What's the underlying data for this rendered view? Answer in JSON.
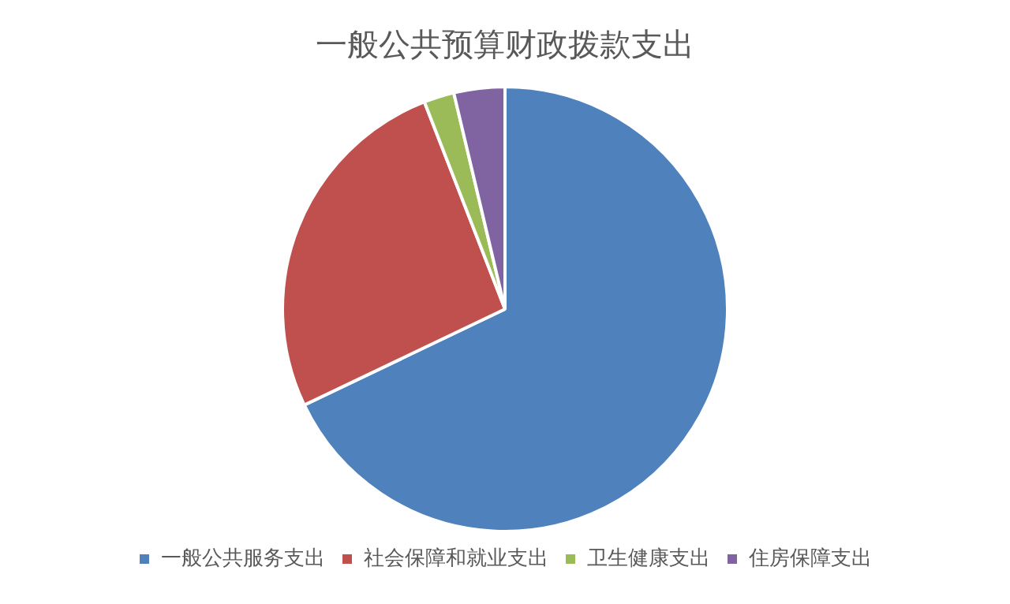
{
  "chart_data": {
    "type": "pie",
    "title": "一般公共预算财政拨款支出",
    "categories": [
      "一般公共服务支出",
      "社会保障和就业支出",
      "卫生健康支出",
      "住房保障支出"
    ],
    "values": [
      67.9,
      26.2,
      2.2,
      3.7
    ],
    "colors": [
      "#4f81bd",
      "#c0504d",
      "#9bbb59",
      "#8064a2"
    ],
    "legend": "bottom"
  }
}
